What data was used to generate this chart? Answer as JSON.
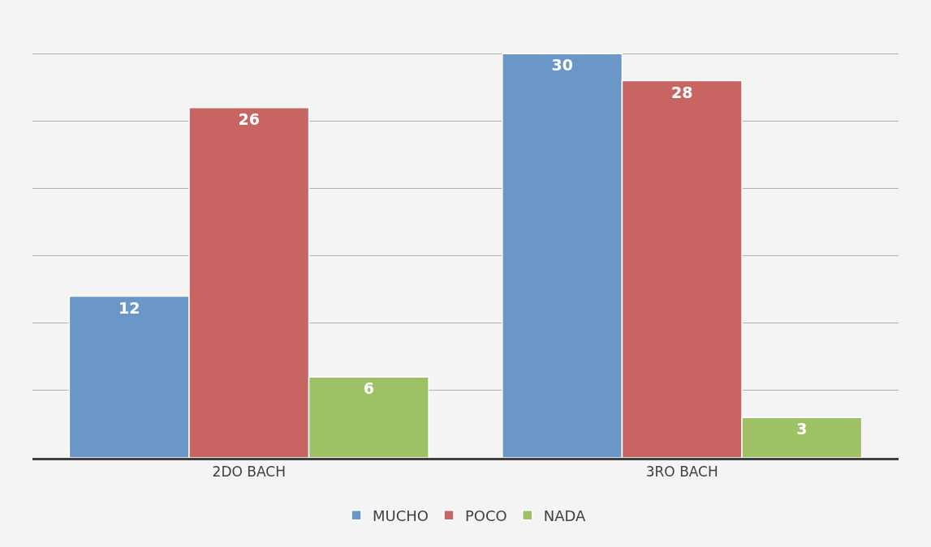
{
  "chart_data": {
    "type": "bar",
    "categories": [
      "2DO BACH",
      "3RO BACH"
    ],
    "series": [
      {
        "name": "MUCHO",
        "color": "#6a96c8",
        "values": [
          12,
          30
        ]
      },
      {
        "name": "POCO",
        "color": "#c86462",
        "values": [
          26,
          28
        ]
      },
      {
        "name": "NADA",
        "color": "#9fc165",
        "values": [
          6,
          3
        ]
      }
    ],
    "tick_labels": "x",
    "grid": "y",
    "legend": "bottom",
    "data_labels": true
  }
}
